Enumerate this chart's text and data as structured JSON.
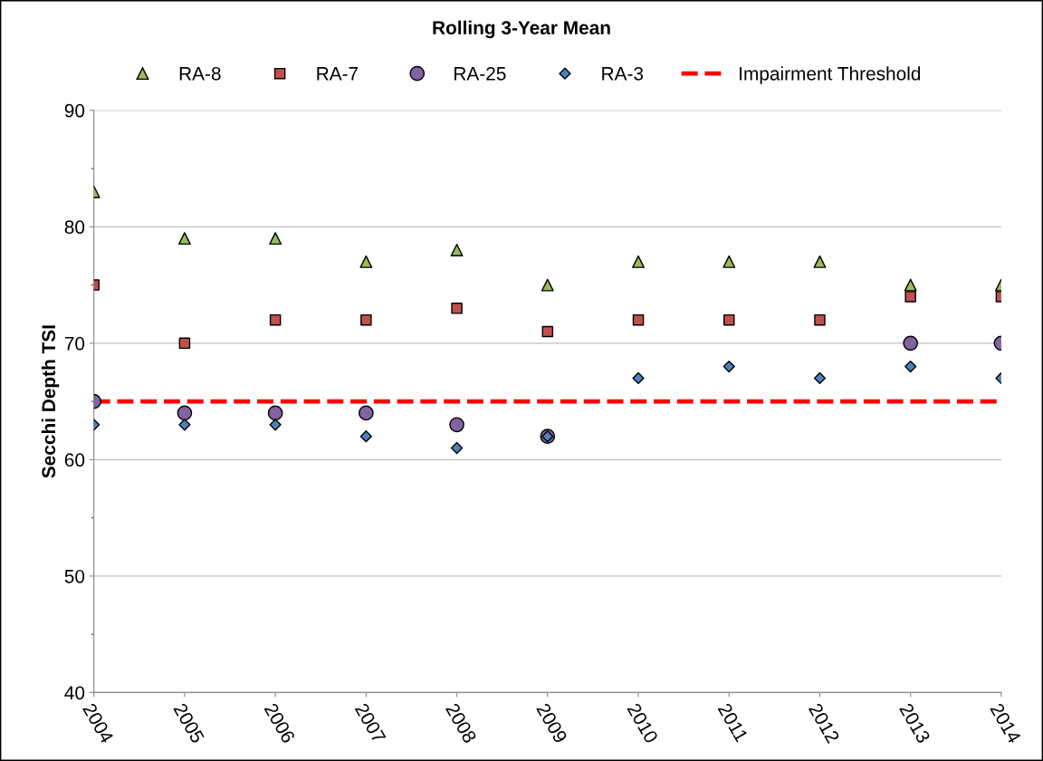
{
  "chart_data": {
    "type": "scatter",
    "title": "Rolling 3-Year Mean",
    "ylabel": "Secchi Depth TSI",
    "categories": [
      "2004",
      "2005",
      "2006",
      "2007",
      "2008",
      "2009",
      "2010",
      "2011",
      "2012",
      "2013",
      "2014"
    ],
    "series": [
      {
        "name": "RA-8",
        "color": "#9bbb59",
        "marker": "triangle",
        "values": [
          83,
          79,
          79,
          77,
          78,
          75,
          77,
          77,
          77,
          75,
          75
        ]
      },
      {
        "name": "RA-7",
        "color": "#c0504d",
        "marker": "square",
        "values": [
          75,
          70,
          72,
          72,
          73,
          71,
          72,
          72,
          72,
          74,
          74
        ]
      },
      {
        "name": "RA-25",
        "color": "#8064a2",
        "marker": "circle",
        "values": [
          65,
          64,
          64,
          64,
          63,
          62,
          null,
          null,
          null,
          70,
          70
        ]
      },
      {
        "name": "RA-3",
        "color": "#4f81bd",
        "marker": "diamond",
        "values": [
          63,
          63,
          63,
          62,
          61,
          62,
          67,
          68,
          67,
          68,
          67
        ]
      }
    ],
    "ref_lines": [
      {
        "axis": "y",
        "value": 65,
        "label": "Impairment Threshold",
        "color": "#ff0000",
        "line_style": "dashed"
      }
    ],
    "ylim": [
      40,
      90
    ],
    "yticks": [
      40,
      50,
      60,
      70,
      80,
      90
    ],
    "grid": "y",
    "legend": "top"
  }
}
